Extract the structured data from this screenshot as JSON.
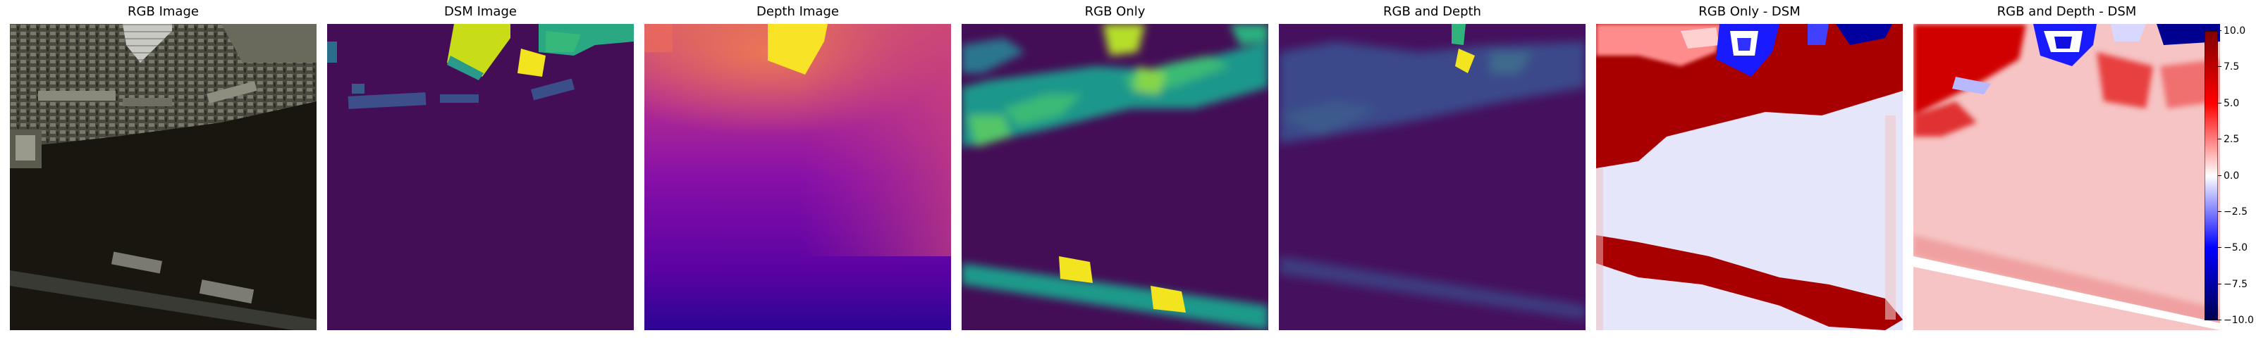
{
  "panels": [
    {
      "title": "RGB Image"
    },
    {
      "title": "DSM Image"
    },
    {
      "title": "Depth Image"
    },
    {
      "title": "RGB Only"
    },
    {
      "title": "RGB and Depth"
    },
    {
      "title": "RGB Only - DSM"
    },
    {
      "title": "RGB and Depth - DSM"
    }
  ],
  "colorbar": {
    "range": [
      -10,
      10
    ],
    "colormap": "seismic",
    "ticks": [
      "10.0",
      "7.5",
      "5.0",
      "2.5",
      "0.0",
      "−2.5",
      "−5.0",
      "−7.5",
      "−10.0"
    ]
  }
}
